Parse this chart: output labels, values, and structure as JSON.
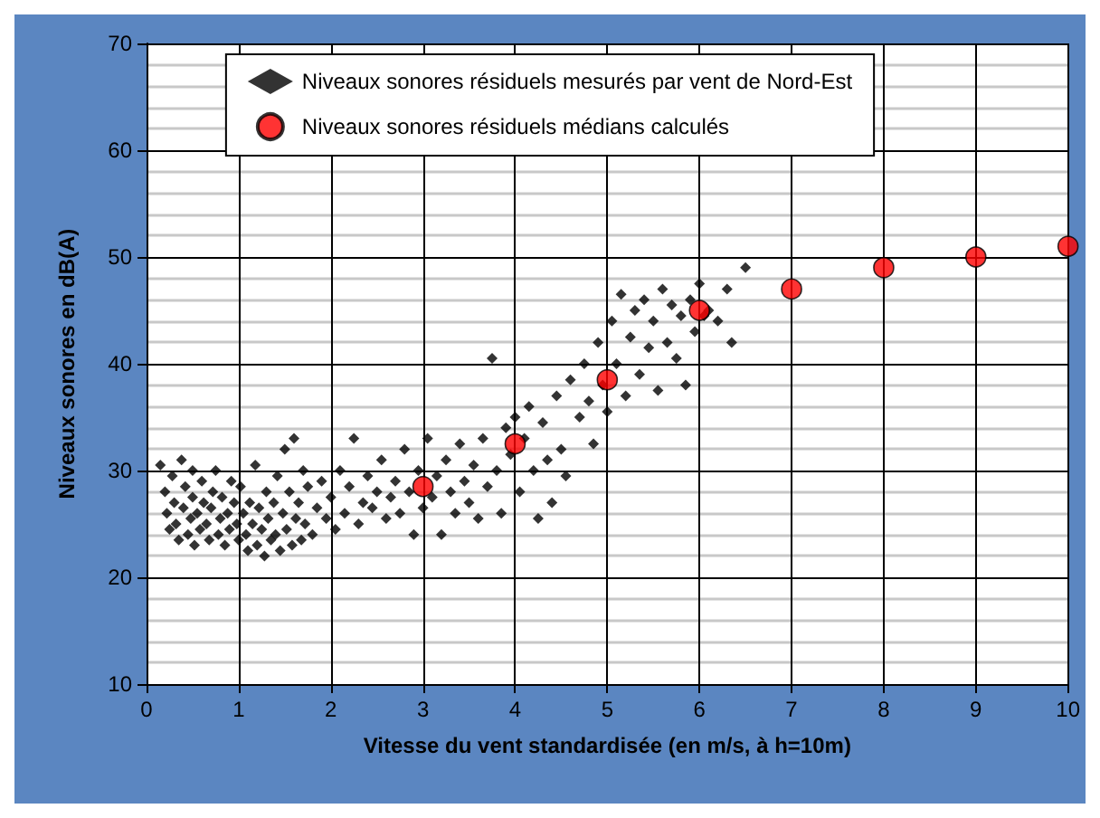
{
  "chart_data": {
    "type": "scatter",
    "xlabel": "Vitesse du vent standardisée (en m/s, à h=10m)",
    "ylabel": "Niveaux sonores en dB(A)",
    "xlim": [
      0,
      10
    ],
    "xticks": [
      0,
      1,
      2,
      3,
      4,
      5,
      6,
      7,
      8,
      9,
      10
    ],
    "ylim": [
      10,
      70
    ],
    "yticks": [
      10,
      20,
      30,
      40,
      50,
      60,
      70
    ],
    "grid": true,
    "legend": "top",
    "series": [
      {
        "name": "Niveaux sonores résiduels mesurés par vent de Nord-Est",
        "color": "#000000",
        "marker": "diamond",
        "x": [
          0.15,
          0.2,
          0.22,
          0.25,
          0.28,
          0.3,
          0.32,
          0.35,
          0.38,
          0.4,
          0.42,
          0.45,
          0.48,
          0.5,
          0.5,
          0.52,
          0.55,
          0.58,
          0.6,
          0.62,
          0.65,
          0.68,
          0.7,
          0.72,
          0.75,
          0.78,
          0.8,
          0.82,
          0.85,
          0.88,
          0.9,
          0.92,
          0.95,
          0.98,
          1.0,
          1.02,
          1.05,
          1.08,
          1.1,
          1.12,
          1.15,
          1.18,
          1.2,
          1.22,
          1.25,
          1.28,
          1.3,
          1.32,
          1.35,
          1.38,
          1.4,
          1.42,
          1.45,
          1.48,
          1.5,
          1.52,
          1.55,
          1.58,
          1.6,
          1.62,
          1.65,
          1.68,
          1.7,
          1.72,
          1.75,
          1.8,
          1.85,
          1.9,
          1.95,
          2.0,
          2.05,
          2.1,
          2.15,
          2.2,
          2.25,
          2.3,
          2.35,
          2.4,
          2.45,
          2.5,
          2.55,
          2.6,
          2.65,
          2.7,
          2.75,
          2.8,
          2.85,
          2.9,
          2.95,
          3.0,
          3.05,
          3.1,
          3.15,
          3.2,
          3.25,
          3.3,
          3.35,
          3.4,
          3.45,
          3.5,
          3.55,
          3.6,
          3.65,
          3.7,
          3.75,
          3.8,
          3.85,
          3.9,
          3.95,
          4.0,
          4.05,
          4.1,
          4.15,
          4.2,
          4.25,
          4.3,
          4.35,
          4.4,
          4.45,
          4.5,
          4.55,
          4.6,
          4.7,
          4.75,
          4.8,
          4.85,
          4.9,
          4.95,
          5.0,
          5.05,
          5.1,
          5.15,
          5.2,
          5.25,
          5.3,
          5.35,
          5.4,
          5.45,
          5.5,
          5.55,
          5.6,
          5.65,
          5.7,
          5.75,
          5.8,
          5.85,
          5.9,
          5.95,
          6.0,
          6.05,
          6.1,
          6.2,
          6.3,
          6.35,
          6.5
        ],
        "values": [
          30.5,
          28,
          26,
          24.5,
          29.5,
          27,
          25,
          23.5,
          31,
          26.5,
          28.5,
          24,
          25.5,
          27.5,
          30,
          23,
          26,
          24.5,
          29,
          27,
          25,
          23.5,
          26.5,
          28,
          30,
          24,
          25.5,
          27.5,
          23,
          26,
          24.5,
          29,
          27,
          25,
          23.5,
          28.5,
          26,
          24,
          22.5,
          27,
          25,
          30.5,
          23,
          26.5,
          24.5,
          22,
          28,
          25.5,
          23.5,
          27,
          24,
          29.5,
          22.5,
          26,
          32,
          24.5,
          28,
          23,
          33,
          25.5,
          27,
          23.5,
          30,
          25,
          28.5,
          24,
          26.5,
          29,
          25.5,
          27.5,
          24.5,
          30,
          26,
          28.5,
          33,
          25,
          27,
          29.5,
          26.5,
          28,
          31,
          25.5,
          27.5,
          29,
          26,
          32,
          28,
          24,
          30,
          26.5,
          33,
          27.5,
          29.5,
          24,
          31,
          28,
          26,
          32.5,
          29,
          27,
          30.5,
          25.5,
          33,
          28.5,
          40.5,
          30,
          26,
          34,
          31.5,
          35,
          28,
          33,
          36,
          30,
          25.5,
          34.5,
          31,
          27,
          37,
          32,
          29.5,
          38.5,
          35,
          40,
          36.5,
          32.5,
          42,
          38,
          35.5,
          44,
          40,
          46.5,
          37,
          42.5,
          45,
          39,
          46,
          41.5,
          44,
          37.5,
          47,
          42,
          45.5,
          40.5,
          44.5,
          38,
          46,
          43,
          47.5,
          44.5,
          45,
          44,
          47,
          42,
          49
        ]
      },
      {
        "name": "Niveaux sonores résiduels médians calculés",
        "color": "#ff0000",
        "marker": "circle",
        "x": [
          3,
          4,
          5,
          6,
          7,
          8,
          9,
          10
        ],
        "values": [
          28.5,
          32.5,
          38.5,
          45,
          47,
          49,
          50,
          51
        ]
      }
    ]
  }
}
